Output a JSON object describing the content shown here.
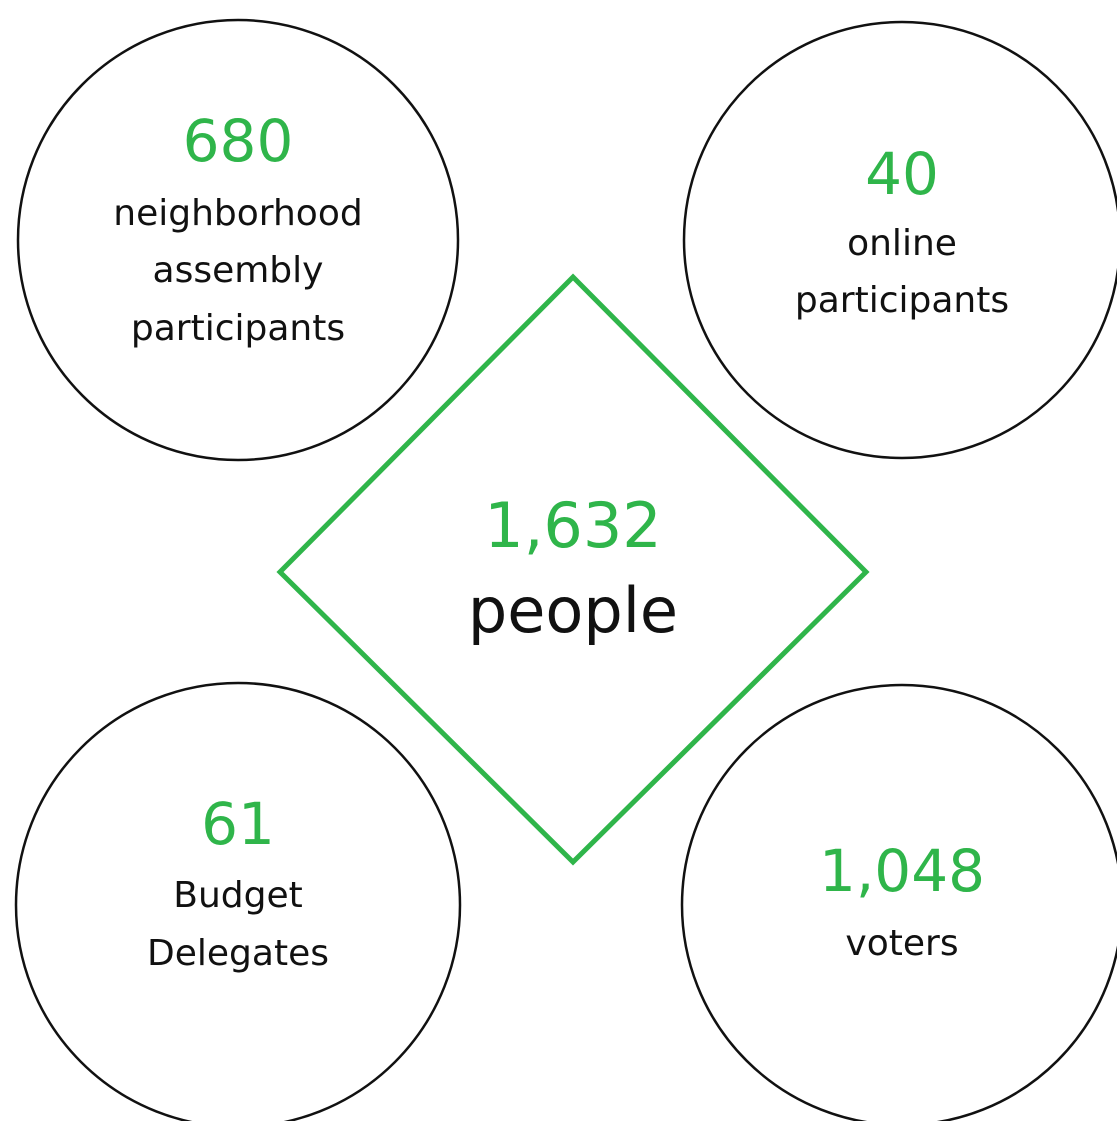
{
  "center": {
    "value": "1,632",
    "label": "people"
  },
  "nodes": [
    {
      "value": "680",
      "lines": [
        "neighborhood",
        "assembly",
        "participants"
      ]
    },
    {
      "value": "40",
      "lines": [
        "online",
        "participants"
      ]
    },
    {
      "value": "61",
      "lines": [
        "Budget",
        "Delegates"
      ]
    },
    {
      "value": "1,048",
      "lines": [
        "voters"
      ]
    }
  ]
}
